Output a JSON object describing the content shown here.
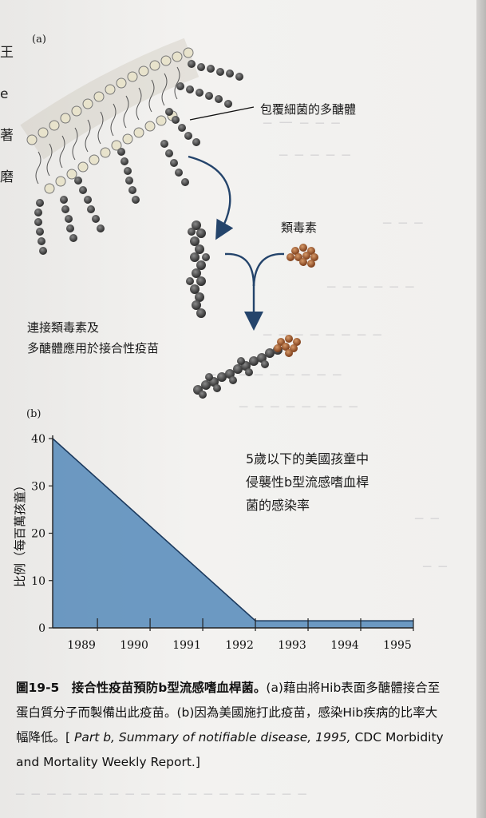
{
  "left_edge": [
    "王",
    "e",
    "著",
    "磨"
  ],
  "panel_a": {
    "label": "(a)",
    "labels": {
      "polysaccharide": "包覆細菌的多醣體",
      "toxoid": "類毒素",
      "vaccine_line1": "連接類毒素及",
      "vaccine_line2": "多醣體應用於接合性疫苗"
    }
  },
  "panel_b": {
    "label": "(b)",
    "note": [
      "5歲以下的美國孩童中",
      "侵襲性b型流感嗜血桿",
      "菌的感染率"
    ]
  },
  "caption": {
    "lead": "圖19-5　接合性疫苗預防b型流感嗜血桿菌。",
    "body": "(a)藉由將Hib表面多醣體接合至蛋白質分子而製備出此疫苗。(b)因為美國施打此疫苗，感染Hib疾病的比率大幅降低。[ ",
    "italic": "Part b, Summary of notifiable disease, 1995,",
    "tail": " CDC Morbidity and Mortality Weekly Report.]"
  },
  "chart_data": {
    "type": "area",
    "title": "",
    "xlabel": "",
    "ylabel": "比例（每百萬孩童）",
    "x_ticks": [
      "1989",
      "1990",
      "1991",
      "1992",
      "1993",
      "1994",
      "1995"
    ],
    "y_ticks": [
      "0",
      "10",
      "20",
      "30",
      "40"
    ],
    "ylim": [
      0,
      40
    ],
    "xlim": [
      1988.15,
      1995
    ],
    "x": [
      1988.15,
      1992,
      1995
    ],
    "y": [
      40,
      1.5,
      1.5
    ],
    "fill_color": "#5d8fbd",
    "line_color": "#1c3a5e"
  }
}
